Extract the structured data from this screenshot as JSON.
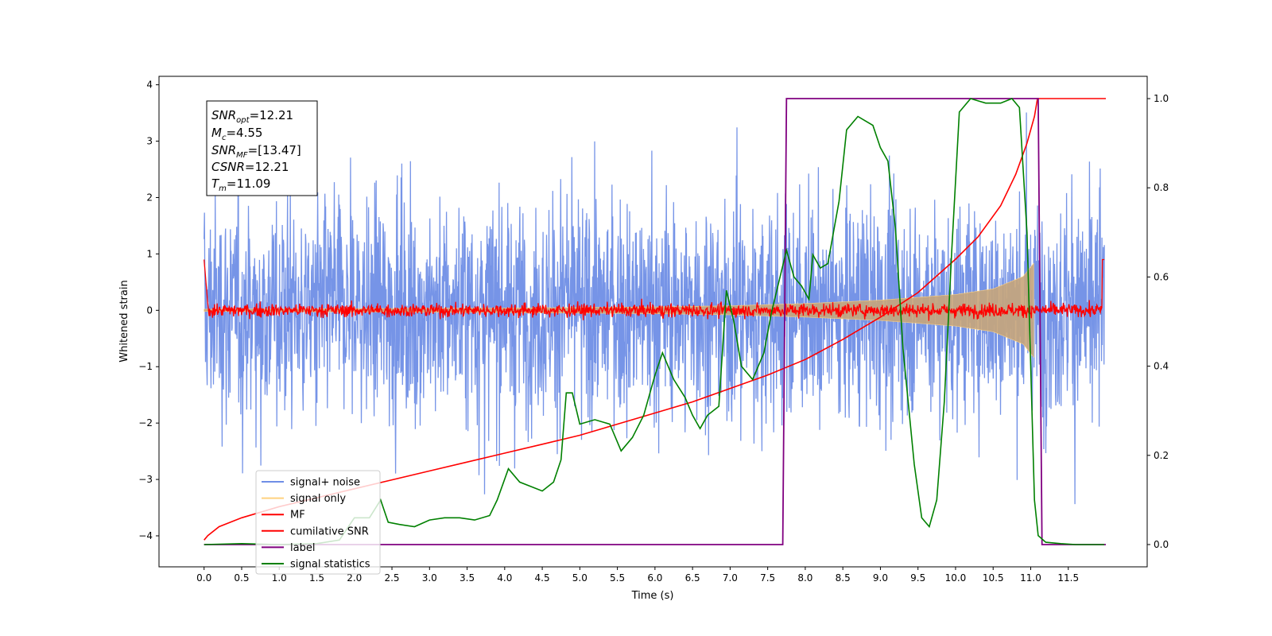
{
  "chart_data": {
    "type": "line",
    "xlabel": "Time (s)",
    "ylabel": "Whitened strain",
    "xlim": [
      -0.6,
      12.55
    ],
    "ylim": [
      -4.55,
      4.15
    ],
    "y2lim": [
      -0.05,
      1.05
    ],
    "xticks": [
      "0.0",
      "0.5",
      "1.0",
      "1.5",
      "2.0",
      "2.5",
      "3.0",
      "3.5",
      "4.0",
      "4.5",
      "5.0",
      "5.5",
      "6.0",
      "6.5",
      "7.0",
      "7.5",
      "8.0",
      "8.5",
      "9.0",
      "9.5",
      "10.0",
      "10.5",
      "11.0",
      "11.5"
    ],
    "yticks": [
      "4",
      "3",
      "2",
      "1",
      "0",
      "−1",
      "−2",
      "−3",
      "−4"
    ],
    "y2ticks": [
      "1.0",
      "0.8",
      "0.6",
      "0.4",
      "0.2",
      "0.0"
    ],
    "annotations": {
      "snr_opt": {
        "name": "SNR",
        "sub": "opt",
        "value": "=12.21"
      },
      "mc": {
        "name": "M",
        "sub": "c",
        "value": "=4.55"
      },
      "snr_mf": {
        "name": "SNR",
        "sub": "MF",
        "value": "=[13.47]"
      },
      "csnr": {
        "name": "CSNR",
        "sub": "",
        "value": "=12.21"
      },
      "tm": {
        "name": "T",
        "sub": "m",
        "value": "=11.09"
      }
    },
    "legend": {
      "position": "lower-left",
      "entries": [
        {
          "label": "signal+ noise",
          "color": "#6f8ee6"
        },
        {
          "label": "signal only",
          "color": "#ffd27f"
        },
        {
          "label": "MF",
          "color": "#ff0000"
        },
        {
          "label": "cumilative SNR",
          "color": "#ff0000"
        },
        {
          "label": "label",
          "color": "#800080"
        },
        {
          "label": "signal statistics",
          "color": "#008000"
        }
      ]
    },
    "series": [
      {
        "name": "signal+ noise",
        "axis": "left",
        "note": "whitened noise band, approx ±2.2 with peaks to ±3.7, t 0–12"
      },
      {
        "name": "signal only",
        "axis": "left",
        "envelope": {
          "t": [
            0,
            2,
            4,
            6,
            7,
            8,
            9,
            10,
            10.5,
            10.9,
            11.05
          ],
          "amp": [
            0.02,
            0.03,
            0.04,
            0.06,
            0.08,
            0.12,
            0.18,
            0.28,
            0.38,
            0.6,
            0.85
          ]
        }
      },
      {
        "name": "MF",
        "axis": "left",
        "note": "noise around 0, amplitude ~0.1"
      },
      {
        "name": "cumilative SNR",
        "axis": "right",
        "x": [
          0,
          0.05,
          0.2,
          0.5,
          1,
          1.5,
          2,
          2.5,
          3,
          3.5,
          4,
          4.5,
          5,
          5.5,
          6,
          6.5,
          7,
          7.5,
          8,
          8.5,
          9,
          9.5,
          10,
          10.3,
          10.6,
          10.8,
          10.95,
          11.05,
          11.09,
          11.12,
          12
        ],
        "y": [
          0.01,
          0.02,
          0.04,
          0.06,
          0.085,
          0.105,
          0.125,
          0.145,
          0.165,
          0.185,
          0.205,
          0.225,
          0.245,
          0.27,
          0.295,
          0.32,
          0.35,
          0.38,
          0.415,
          0.46,
          0.51,
          0.565,
          0.64,
          0.69,
          0.76,
          0.83,
          0.9,
          0.96,
          1.0,
          1.0,
          1.0
        ]
      },
      {
        "name": "label",
        "axis": "right",
        "x": [
          0,
          7.7,
          7.75,
          11.1,
          11.15,
          12
        ],
        "y": [
          0,
          0,
          1,
          1,
          0,
          0
        ]
      },
      {
        "name": "signal statistics",
        "axis": "right",
        "x": [
          0,
          0.5,
          1,
          1.5,
          1.8,
          2,
          2.2,
          2.35,
          2.45,
          2.6,
          2.8,
          3,
          3.2,
          3.4,
          3.6,
          3.8,
          3.9,
          4.05,
          4.2,
          4.35,
          4.5,
          4.65,
          4.75,
          4.82,
          4.9,
          5,
          5.2,
          5.4,
          5.55,
          5.7,
          5.85,
          6,
          6.1,
          6.25,
          6.4,
          6.5,
          6.6,
          6.7,
          6.85,
          6.95,
          7.05,
          7.15,
          7.3,
          7.45,
          7.55,
          7.65,
          7.75,
          7.85,
          7.95,
          8.05,
          8.1,
          8.2,
          8.3,
          8.45,
          8.55,
          8.7,
          8.8,
          8.9,
          9,
          9.1,
          9.2,
          9.3,
          9.45,
          9.55,
          9.65,
          9.75,
          9.85,
          9.95,
          10.05,
          10.2,
          10.4,
          10.6,
          10.75,
          10.85,
          10.95,
          11.05,
          11.1,
          11.2,
          11.4,
          11.6,
          11.8,
          11.98
        ],
        "y": [
          0,
          0.002,
          0,
          0.002,
          0.01,
          0.06,
          0.06,
          0.1,
          0.05,
          0.045,
          0.04,
          0.055,
          0.06,
          0.06,
          0.055,
          0.065,
          0.1,
          0.17,
          0.14,
          0.13,
          0.12,
          0.14,
          0.19,
          0.34,
          0.34,
          0.27,
          0.28,
          0.27,
          0.21,
          0.24,
          0.29,
          0.38,
          0.43,
          0.37,
          0.33,
          0.29,
          0.26,
          0.29,
          0.31,
          0.57,
          0.5,
          0.4,
          0.37,
          0.43,
          0.52,
          0.59,
          0.66,
          0.6,
          0.58,
          0.55,
          0.65,
          0.62,
          0.63,
          0.77,
          0.93,
          0.96,
          0.95,
          0.94,
          0.89,
          0.86,
          0.71,
          0.44,
          0.18,
          0.06,
          0.04,
          0.1,
          0.32,
          0.66,
          0.97,
          1.0,
          0.99,
          0.99,
          1.0,
          0.98,
          0.7,
          0.1,
          0.02,
          0.005,
          0.002,
          0,
          0,
          0
        ]
      }
    ]
  }
}
